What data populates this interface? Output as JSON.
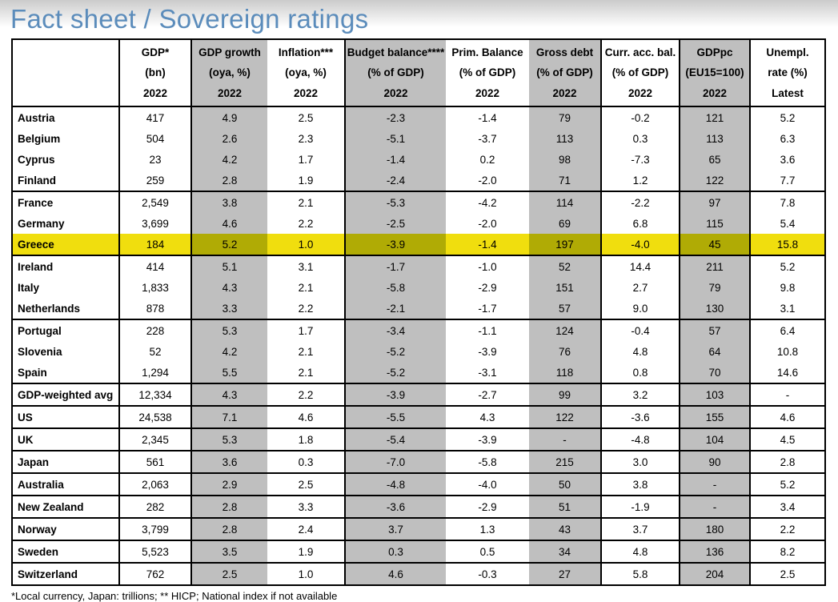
{
  "title": "Fact sheet / Sovereign ratings",
  "footnote": "*Local currency, Japan: trillions; ** HICP; National index if not available",
  "colors": {
    "title_blue": "#5b8cbb",
    "shade_gray": "#bfbfbf",
    "highlight_yellow": "#f0de0e",
    "highlight_olive": "#b0ab05"
  },
  "table": {
    "columns": [
      {
        "id": "country",
        "lines": [
          "",
          "",
          ""
        ],
        "shaded": false,
        "border_right": true
      },
      {
        "id": "gdp",
        "lines": [
          "GDP*",
          "(bn)",
          "2022"
        ],
        "shaded": false,
        "border_right": true
      },
      {
        "id": "gdp-growth",
        "lines": [
          "GDP growth",
          "(oya, %)",
          "2022"
        ],
        "shaded": true,
        "border_right": false
      },
      {
        "id": "inflation",
        "lines": [
          "Inflation***",
          "(oya, %)",
          "2022"
        ],
        "shaded": false,
        "border_right": true
      },
      {
        "id": "budget-balance",
        "lines": [
          "Budget balance****",
          "(% of GDP)",
          "2022"
        ],
        "shaded": true,
        "border_right": false
      },
      {
        "id": "prim-balance",
        "lines": [
          "Prim. Balance",
          "(% of GDP)",
          "2022"
        ],
        "shaded": false,
        "border_right": false
      },
      {
        "id": "gross-debt",
        "lines": [
          "Gross debt",
          "(% of GDP)",
          "2022"
        ],
        "shaded": true,
        "border_right": true
      },
      {
        "id": "curr-acc-bal",
        "lines": [
          "Curr. acc. bal.",
          "(% of GDP)",
          "2022"
        ],
        "shaded": false,
        "border_right": true
      },
      {
        "id": "gdppc",
        "lines": [
          "GDPpc",
          "(EU15=100)",
          "2022"
        ],
        "shaded": true,
        "border_right": true
      },
      {
        "id": "unempl",
        "lines": [
          "Unempl.",
          "rate (%)",
          "Latest"
        ],
        "shaded": false,
        "border_right": false
      }
    ],
    "rows": [
      {
        "country": "Austria",
        "values": [
          "417",
          "4.9",
          "2.5",
          "-2.3",
          "-1.4",
          "79",
          "-0.2",
          "121",
          "5.2"
        ],
        "sep": false,
        "highlight": false
      },
      {
        "country": "Belgium",
        "values": [
          "504",
          "2.6",
          "2.3",
          "-5.1",
          "-3.7",
          "113",
          "0.3",
          "113",
          "6.3"
        ],
        "sep": false,
        "highlight": false
      },
      {
        "country": "Cyprus",
        "values": [
          "23",
          "4.2",
          "1.7",
          "-1.4",
          "0.2",
          "98",
          "-7.3",
          "65",
          "3.6"
        ],
        "sep": false,
        "highlight": false
      },
      {
        "country": "Finland",
        "values": [
          "259",
          "2.8",
          "1.9",
          "-2.4",
          "-2.0",
          "71",
          "1.2",
          "122",
          "7.7"
        ],
        "sep": false,
        "highlight": false
      },
      {
        "country": "France",
        "values": [
          "2,549",
          "3.8",
          "2.1",
          "-5.3",
          "-4.2",
          "114",
          "-2.2",
          "97",
          "7.8"
        ],
        "sep": true,
        "highlight": false
      },
      {
        "country": "Germany",
        "values": [
          "3,699",
          "4.6",
          "2.2",
          "-2.5",
          "-2.0",
          "69",
          "6.8",
          "115",
          "5.4"
        ],
        "sep": false,
        "highlight": false
      },
      {
        "country": "Greece",
        "values": [
          "184",
          "5.2",
          "1.0",
          "-3.9",
          "-1.4",
          "197",
          "-4.0",
          "45",
          "15.8"
        ],
        "sep": false,
        "highlight": true
      },
      {
        "country": "Ireland",
        "values": [
          "414",
          "5.1",
          "3.1",
          "-1.7",
          "-1.0",
          "52",
          "14.4",
          "211",
          "5.2"
        ],
        "sep": true,
        "highlight": false
      },
      {
        "country": "Italy",
        "values": [
          "1,833",
          "4.3",
          "2.1",
          "-5.8",
          "-2.9",
          "151",
          "2.7",
          "79",
          "9.8"
        ],
        "sep": false,
        "highlight": false
      },
      {
        "country": "Netherlands",
        "values": [
          "878",
          "3.3",
          "2.2",
          "-2.1",
          "-1.7",
          "57",
          "9.0",
          "130",
          "3.1"
        ],
        "sep": false,
        "highlight": false
      },
      {
        "country": "Portugal",
        "values": [
          "228",
          "5.3",
          "1.7",
          "-3.4",
          "-1.1",
          "124",
          "-0.4",
          "57",
          "6.4"
        ],
        "sep": true,
        "highlight": false
      },
      {
        "country": "Slovenia",
        "values": [
          "52",
          "4.2",
          "2.1",
          "-5.2",
          "-3.9",
          "76",
          "4.8",
          "64",
          "10.8"
        ],
        "sep": false,
        "highlight": false
      },
      {
        "country": "Spain",
        "values": [
          "1,294",
          "5.5",
          "2.1",
          "-5.2",
          "-3.1",
          "118",
          "0.8",
          "70",
          "14.6"
        ],
        "sep": false,
        "highlight": false
      },
      {
        "country": "GDP-weighted avg",
        "values": [
          "12,334",
          "4.3",
          "2.2",
          "-3.9",
          "-2.7",
          "99",
          "3.2",
          "103",
          "-"
        ],
        "sep": true,
        "highlight": false
      },
      {
        "country": "US",
        "values": [
          "24,538",
          "7.1",
          "4.6",
          "-5.5",
          "4.3",
          "122",
          "-3.6",
          "155",
          "4.6"
        ],
        "sep": true,
        "highlight": false
      },
      {
        "country": "UK",
        "values": [
          "2,345",
          "5.3",
          "1.8",
          "-5.4",
          "-3.9",
          "-",
          "-4.8",
          "104",
          "4.5"
        ],
        "sep": true,
        "highlight": false
      },
      {
        "country": "Japan",
        "values": [
          "561",
          "3.6",
          "0.3",
          "-7.0",
          "-5.8",
          "215",
          "3.0",
          "90",
          "2.8"
        ],
        "sep": true,
        "highlight": false
      },
      {
        "country": "Australia",
        "values": [
          "2,063",
          "2.9",
          "2.5",
          "-4.8",
          "-4.0",
          "50",
          "3.8",
          "-",
          "5.2"
        ],
        "sep": true,
        "highlight": false
      },
      {
        "country": "New Zealand",
        "values": [
          "282",
          "2.8",
          "3.3",
          "-3.6",
          "-2.9",
          "51",
          "-1.9",
          "-",
          "3.4"
        ],
        "sep": true,
        "highlight": false
      },
      {
        "country": "Norway",
        "values": [
          "3,799",
          "2.8",
          "2.4",
          "3.7",
          "1.3",
          "43",
          "3.7",
          "180",
          "2.2"
        ],
        "sep": true,
        "highlight": false
      },
      {
        "country": "Sweden",
        "values": [
          "5,523",
          "3.5",
          "1.9",
          "0.3",
          "0.5",
          "34",
          "4.8",
          "136",
          "8.2"
        ],
        "sep": true,
        "highlight": false
      },
      {
        "country": "Switzerland",
        "values": [
          "762",
          "2.5",
          "1.0",
          "4.6",
          "-0.3",
          "27",
          "5.8",
          "204",
          "2.5"
        ],
        "sep": true,
        "highlight": false
      }
    ]
  }
}
